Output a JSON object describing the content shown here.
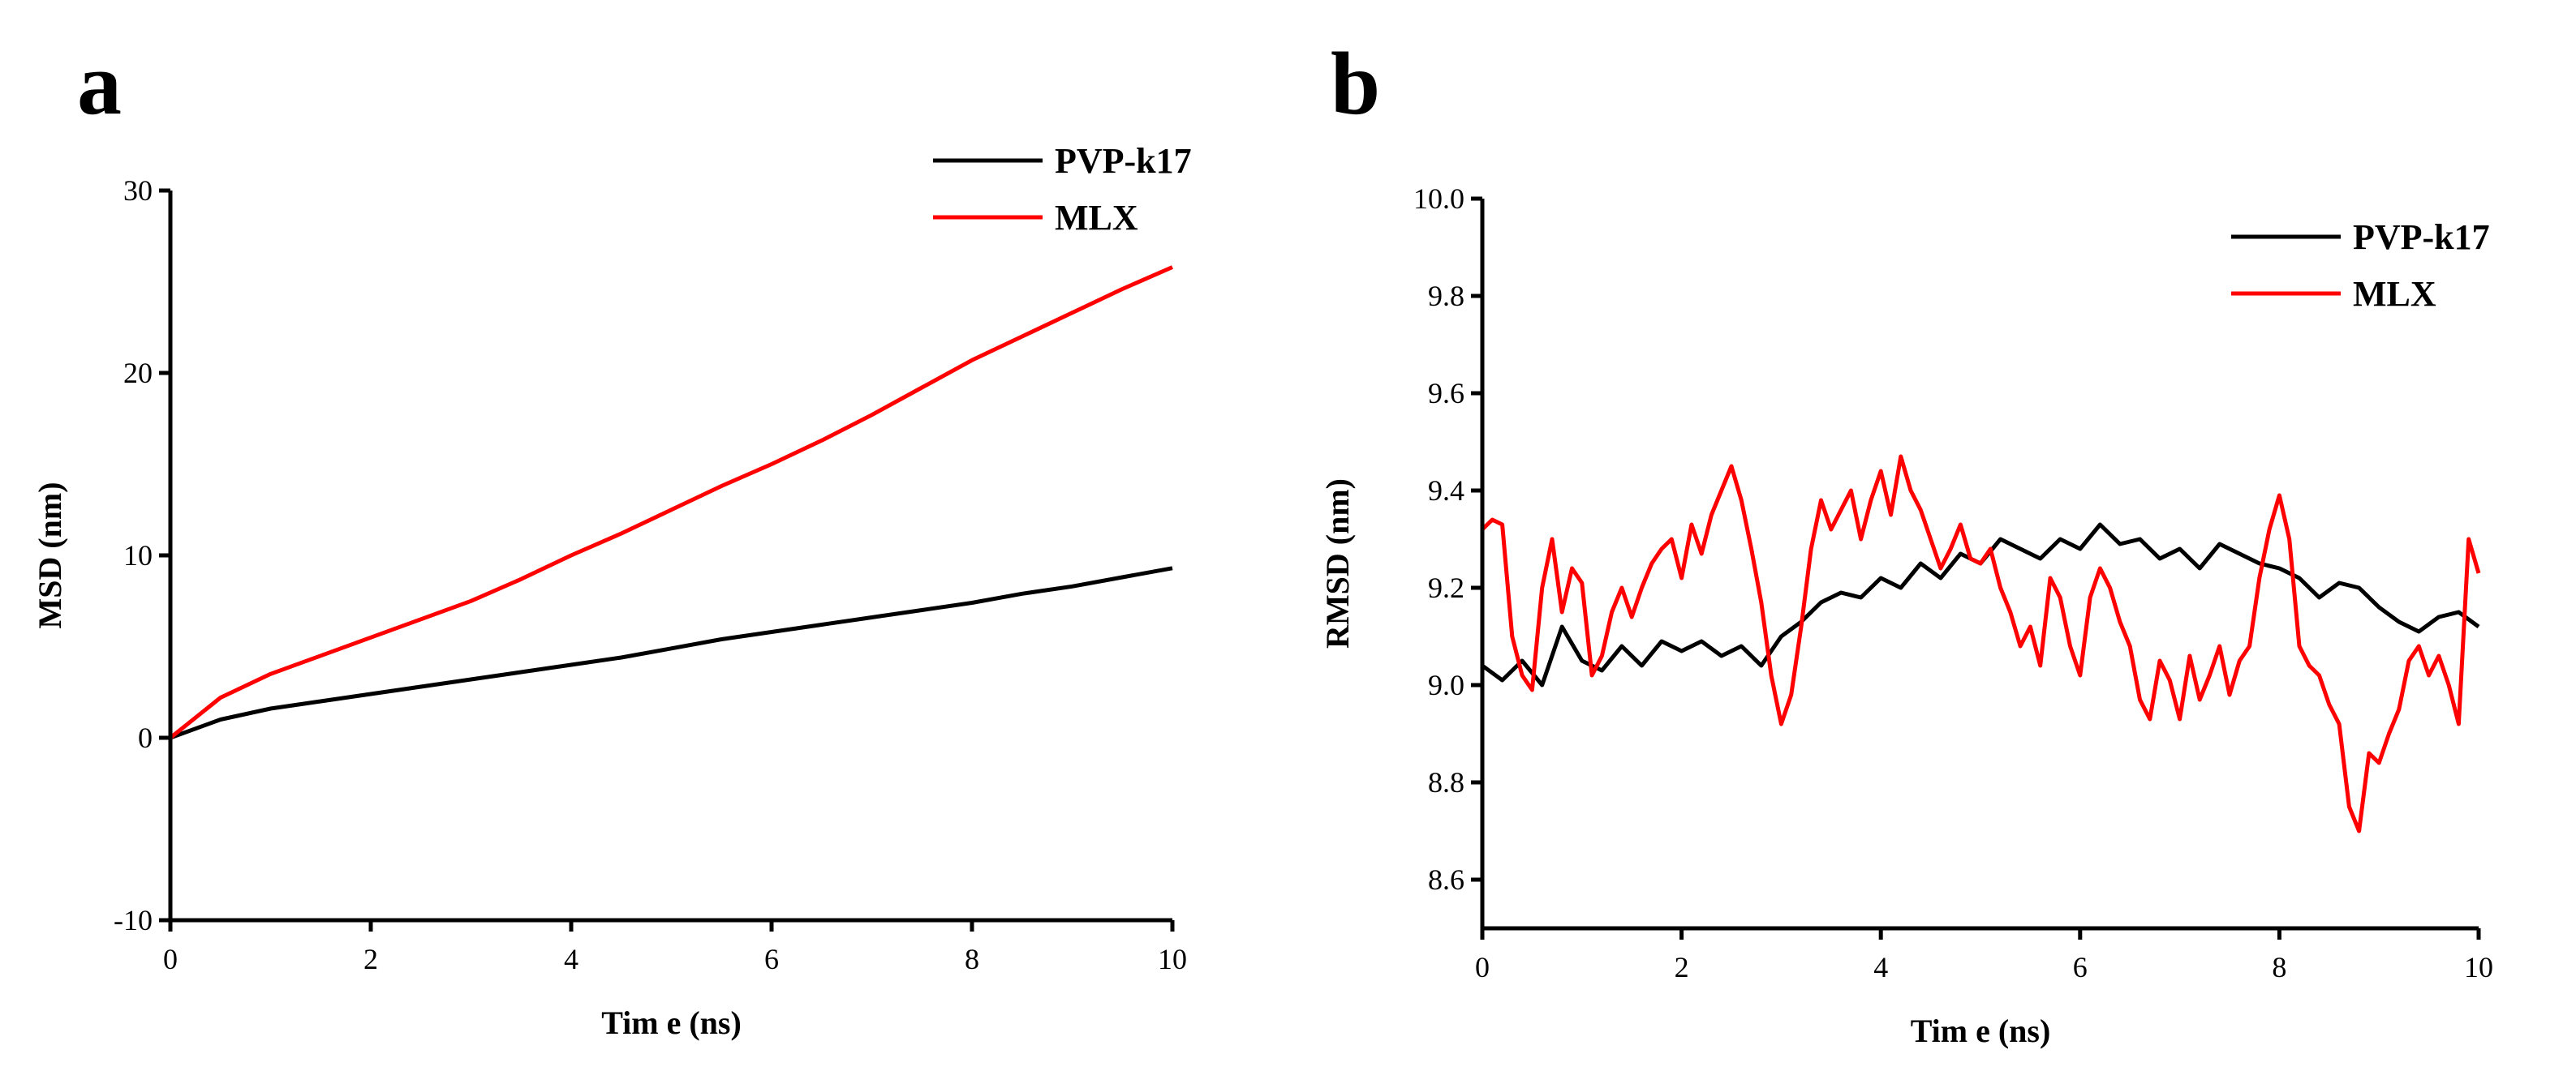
{
  "chart_data": [
    {
      "panel": "a",
      "type": "line",
      "xlabel": "Tim e (ns)",
      "ylabel": "MSD (nm)",
      "xlim": [
        0,
        10
      ],
      "ylim": [
        -10,
        30
      ],
      "xticks": [
        0,
        2,
        4,
        6,
        8,
        10
      ],
      "yticks": [
        -10,
        0,
        10,
        20,
        30
      ],
      "legend": "top-right",
      "series": [
        {
          "name": "PVP-k17",
          "color": "#000000",
          "x": [
            0,
            0.5,
            1,
            1.5,
            2,
            2.5,
            3,
            3.5,
            4,
            4.5,
            5,
            5.5,
            6,
            6.5,
            7,
            7.5,
            8,
            8.5,
            9,
            9.5,
            10
          ],
          "y": [
            0,
            1.0,
            1.6,
            2.0,
            2.4,
            2.8,
            3.2,
            3.6,
            4.0,
            4.4,
            4.9,
            5.4,
            5.8,
            6.2,
            6.6,
            7.0,
            7.4,
            7.9,
            8.3,
            8.8,
            9.3
          ]
        },
        {
          "name": "MLX",
          "color": "#ff0000",
          "x": [
            0,
            0.5,
            1,
            1.5,
            2,
            2.5,
            3,
            3.5,
            4,
            4.5,
            5,
            5.5,
            6,
            6.5,
            7,
            7.5,
            8,
            8.5,
            9,
            9.5,
            10
          ],
          "y": [
            0,
            2.2,
            3.5,
            4.5,
            5.5,
            6.5,
            7.5,
            8.7,
            10.0,
            11.2,
            12.5,
            13.8,
            15.0,
            16.3,
            17.7,
            19.2,
            20.7,
            22.0,
            23.3,
            24.6,
            25.8
          ]
        }
      ]
    },
    {
      "panel": "b",
      "type": "line",
      "xlabel": "Tim e (ns)",
      "ylabel": "RMSD (nm)",
      "xlim": [
        0,
        10
      ],
      "ylim": [
        8.5,
        10.0
      ],
      "xticks": [
        0,
        2,
        4,
        6,
        8,
        10
      ],
      "yticks": [
        8.6,
        8.8,
        9.0,
        9.2,
        9.4,
        9.6,
        9.8,
        10.0
      ],
      "legend": "top-right",
      "series": [
        {
          "name": "PVP-k17",
          "color": "#000000",
          "x": [
            0,
            0.2,
            0.4,
            0.6,
            0.8,
            1.0,
            1.2,
            1.4,
            1.6,
            1.8,
            2.0,
            2.2,
            2.4,
            2.6,
            2.8,
            3.0,
            3.2,
            3.4,
            3.6,
            3.8,
            4.0,
            4.2,
            4.4,
            4.6,
            4.8,
            5.0,
            5.2,
            5.4,
            5.6,
            5.8,
            6.0,
            6.2,
            6.4,
            6.6,
            6.8,
            7.0,
            7.2,
            7.4,
            7.6,
            7.8,
            8.0,
            8.2,
            8.4,
            8.6,
            8.8,
            9.0,
            9.2,
            9.4,
            9.6,
            9.8,
            10.0
          ],
          "y": [
            9.04,
            9.01,
            9.05,
            9.0,
            9.12,
            9.05,
            9.03,
            9.08,
            9.04,
            9.09,
            9.07,
            9.09,
            9.06,
            9.08,
            9.04,
            9.1,
            9.13,
            9.17,
            9.19,
            9.18,
            9.22,
            9.2,
            9.25,
            9.22,
            9.27,
            9.25,
            9.3,
            9.28,
            9.26,
            9.3,
            9.28,
            9.33,
            9.29,
            9.3,
            9.26,
            9.28,
            9.24,
            9.29,
            9.27,
            9.25,
            9.24,
            9.22,
            9.18,
            9.21,
            9.2,
            9.16,
            9.13,
            9.11,
            9.14,
            9.15,
            9.12
          ]
        },
        {
          "name": "MLX",
          "color": "#ff0000",
          "x": [
            0,
            0.1,
            0.2,
            0.3,
            0.4,
            0.5,
            0.6,
            0.7,
            0.8,
            0.9,
            1.0,
            1.1,
            1.2,
            1.3,
            1.4,
            1.5,
            1.6,
            1.7,
            1.8,
            1.9,
            2.0,
            2.1,
            2.2,
            2.3,
            2.4,
            2.5,
            2.6,
            2.7,
            2.8,
            2.9,
            3.0,
            3.1,
            3.2,
            3.3,
            3.4,
            3.5,
            3.6,
            3.7,
            3.8,
            3.9,
            4.0,
            4.1,
            4.2,
            4.3,
            4.4,
            4.5,
            4.6,
            4.7,
            4.8,
            4.9,
            5.0,
            5.1,
            5.2,
            5.3,
            5.4,
            5.5,
            5.6,
            5.7,
            5.8,
            5.9,
            6.0,
            6.1,
            6.2,
            6.3,
            6.4,
            6.5,
            6.6,
            6.7,
            6.8,
            6.9,
            7.0,
            7.1,
            7.2,
            7.3,
            7.4,
            7.5,
            7.6,
            7.7,
            7.8,
            7.9,
            8.0,
            8.1,
            8.2,
            8.3,
            8.4,
            8.5,
            8.6,
            8.7,
            8.8,
            8.9,
            9.0,
            9.1,
            9.2,
            9.3,
            9.4,
            9.5,
            9.6,
            9.7,
            9.8,
            9.9,
            10.0
          ],
          "y": [
            9.32,
            9.34,
            9.33,
            9.1,
            9.02,
            8.99,
            9.2,
            9.3,
            9.15,
            9.24,
            9.21,
            9.02,
            9.06,
            9.15,
            9.2,
            9.14,
            9.2,
            9.25,
            9.28,
            9.3,
            9.22,
            9.33,
            9.27,
            9.35,
            9.4,
            9.45,
            9.38,
            9.28,
            9.17,
            9.02,
            8.92,
            8.98,
            9.12,
            9.28,
            9.38,
            9.32,
            9.36,
            9.4,
            9.3,
            9.38,
            9.44,
            9.35,
            9.47,
            9.4,
            9.36,
            9.3,
            9.24,
            9.28,
            9.33,
            9.26,
            9.25,
            9.28,
            9.2,
            9.15,
            9.08,
            9.12,
            9.04,
            9.22,
            9.18,
            9.08,
            9.02,
            9.18,
            9.24,
            9.2,
            9.13,
            9.08,
            8.97,
            8.93,
            9.05,
            9.01,
            8.93,
            9.06,
            8.97,
            9.02,
            9.08,
            8.98,
            9.05,
            9.08,
            9.22,
            9.32,
            9.39,
            9.3,
            9.08,
            9.04,
            9.02,
            8.96,
            8.92,
            8.75,
            8.7,
            8.86,
            8.84,
            8.9,
            8.95,
            9.05,
            9.08,
            9.02,
            9.06,
            9.0,
            8.92,
            9.3,
            9.23
          ]
        }
      ]
    }
  ]
}
